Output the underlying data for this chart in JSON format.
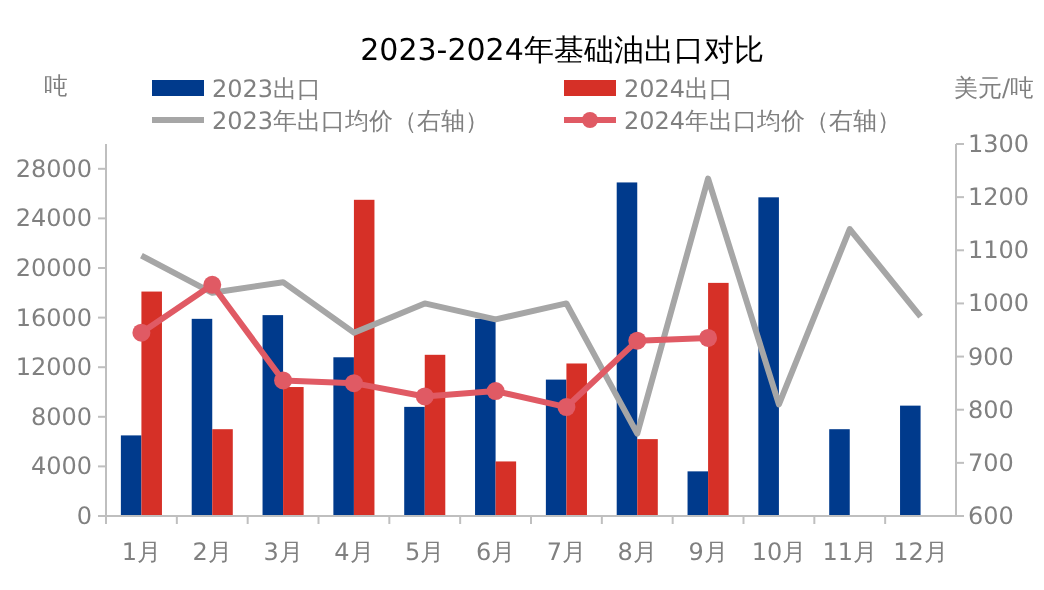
{
  "chart_data": {
    "type": "bar",
    "title": "2023-2024年基础油出口对比",
    "ylabel": "吨",
    "y2label": "美元/吨",
    "categories": [
      "1月",
      "2月",
      "3月",
      "4月",
      "5月",
      "6月",
      "7月",
      "8月",
      "9月",
      "10月",
      "11月",
      "12月"
    ],
    "series": [
      {
        "name": "2023出口",
        "color": "#003a8c",
        "values": [
          6500,
          15900,
          16200,
          12800,
          8800,
          15900,
          11000,
          26900,
          3600,
          25700,
          7000,
          8900
        ]
      },
      {
        "name": "2024出口",
        "color": "#d63027",
        "values": [
          18100,
          7000,
          10400,
          25500,
          13000,
          4400,
          12300,
          6200,
          18800,
          null,
          null,
          null
        ]
      },
      {
        "name": "2023年出口均价（右轴）",
        "type": "line",
        "axis": "y2",
        "color": "#a6a6a6",
        "marker": "none",
        "values": [
          1090,
          1020,
          1040,
          945,
          1000,
          970,
          1000,
          755,
          1235,
          810,
          1140,
          975
        ]
      },
      {
        "name": "2024年出口均价（右轴）",
        "type": "line",
        "axis": "y2",
        "color": "#e05a64",
        "marker": "circle",
        "values": [
          945,
          1035,
          855,
          850,
          825,
          835,
          805,
          930,
          935,
          null,
          null,
          null
        ]
      }
    ],
    "ylim": [
      0,
      30000
    ],
    "yticks": [
      0,
      4000,
      8000,
      12000,
      16000,
      20000,
      24000,
      28000
    ],
    "y2lim": [
      600,
      1300
    ],
    "y2ticks": [
      600,
      700,
      800,
      900,
      1000,
      1100,
      1200,
      1300
    ],
    "grid": false,
    "legend": "top"
  }
}
